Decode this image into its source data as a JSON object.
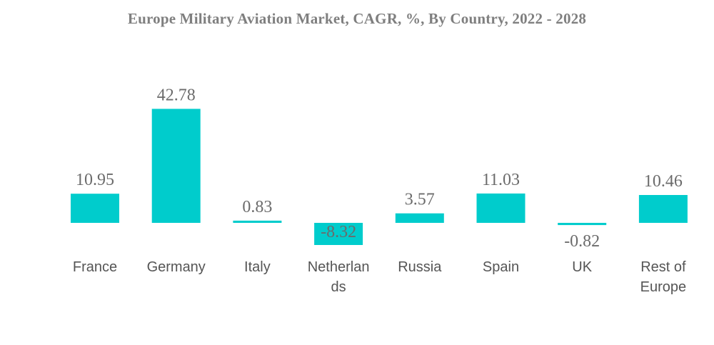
{
  "chart_data": {
    "type": "bar",
    "title": "Europe Military Aviation Market, CAGR, %, By Country, 2022 - 2028",
    "categories": [
      "France",
      "Germany",
      "Italy",
      "Netherlands",
      "Russia",
      "Spain",
      "UK",
      "Rest of Europe"
    ],
    "category_label_lines": [
      [
        "France"
      ],
      [
        "Germany"
      ],
      [
        "Italy"
      ],
      [
        "Netherlan",
        "ds"
      ],
      [
        "Russia"
      ],
      [
        "Spain"
      ],
      [
        "UK"
      ],
      [
        "Rest of",
        "Europe"
      ]
    ],
    "values": [
      10.95,
      42.78,
      0.83,
      -8.32,
      3.57,
      11.03,
      -0.82,
      10.46
    ],
    "value_labels": [
      "10.95",
      "42.78",
      "0.83",
      "-8.32",
      "3.57",
      "11.03",
      "-0.82",
      "10.46"
    ],
    "xlabel": "",
    "ylabel": "",
    "grid": false,
    "legend": "none",
    "bar_color": "#00cccc"
  }
}
